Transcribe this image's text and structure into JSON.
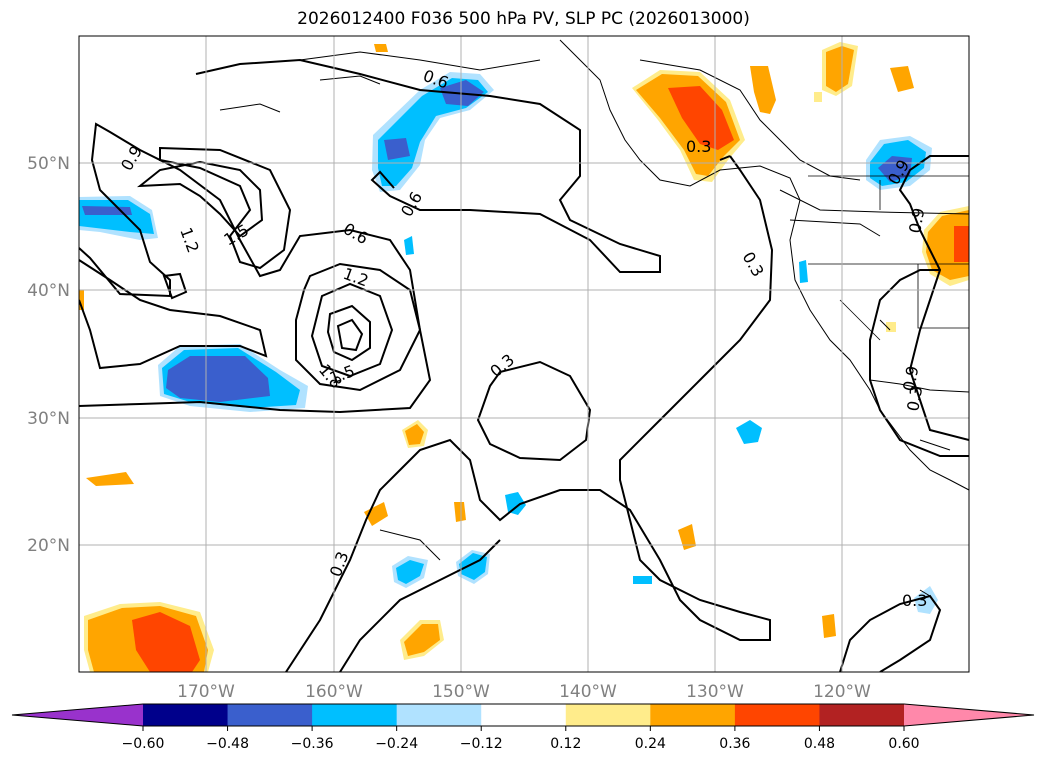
{
  "title": "2026012400 F036 500 hPa PV, SLP PC (2026013000)",
  "lat_labels": [
    "50°N",
    "40°N",
    "30°N",
    "20°N"
  ],
  "lon_labels": [
    "170°W",
    "160°W",
    "150°W",
    "140°W",
    "130°W",
    "120°W"
  ],
  "colorbar": {
    "ticks": [
      "−0.60",
      "−0.48",
      "−0.36",
      "−0.24",
      "−0.12",
      "0.12",
      "0.24",
      "0.36",
      "0.48",
      "0.60"
    ],
    "colors": [
      "#9932cc",
      "#00008b",
      "#3a5fcd",
      "#00bfff",
      "#b0e2ff",
      "#ffffff",
      "#ffec8b",
      "#ffa500",
      "#ff4500",
      "#b22222",
      "#ff88aa"
    ]
  },
  "contour_labels": [
    "0.6",
    "0.9",
    "1.2",
    "1.5",
    "0.6",
    "0.6",
    "1.2",
    "1.8",
    "1.5",
    "0.3",
    "0.3",
    "0.3",
    "0.3",
    "0.3",
    "0.9",
    "0.9",
    "0.9",
    "0.3"
  ],
  "colors": {
    "neg_fill": "#00bfff",
    "neg_strong": "#3a5fcd",
    "neg_light": "#b0e2ff",
    "pos_light": "#ffec8b",
    "pos_fill": "#ffa500",
    "pos_strong": "#ff4500",
    "grid": "#b0b0b0"
  }
}
